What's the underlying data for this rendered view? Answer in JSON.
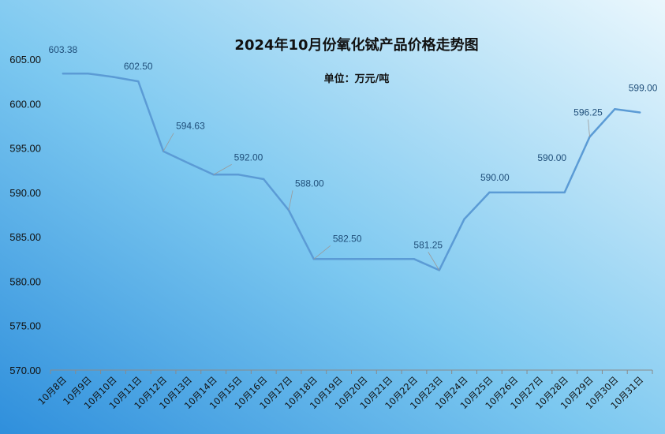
{
  "chart_data": {
    "type": "line",
    "title": "2024年10月份氧化铽产品价格走势图",
    "subtitle": "单位：万元/吨",
    "categories": [
      "10月8日",
      "10月9日",
      "10月10日",
      "10月11日",
      "10月12日",
      "10月13日",
      "10月14日",
      "10月15日",
      "10月16日",
      "10月17日",
      "10月18日",
      "10月19日",
      "10月20日",
      "10月21日",
      "10月22日",
      "10月23日",
      "10月24日",
      "10月25日",
      "10月26日",
      "10月27日",
      "10月28日",
      "10月29日",
      "10月30日",
      "10月31日"
    ],
    "series": [
      {
        "values": [
          603.38,
          603.38,
          603.0,
          602.5,
          594.63,
          593.3,
          592.0,
          592.0,
          591.5,
          588.0,
          582.5,
          582.5,
          582.5,
          582.5,
          582.5,
          581.25,
          587.0,
          590.0,
          590.0,
          590.0,
          590.0,
          596.25,
          599.38,
          599.0
        ]
      }
    ],
    "data_labels": [
      {
        "index": 0,
        "text": "603.38"
      },
      {
        "index": 3,
        "text": "602.50"
      },
      {
        "index": 4,
        "text": "594.63"
      },
      {
        "index": 6,
        "text": "592.00"
      },
      {
        "index": 9,
        "text": "588.00"
      },
      {
        "index": 10,
        "text": "582.50"
      },
      {
        "index": 15,
        "text": "581.25"
      },
      {
        "index": 17,
        "text": "590.00"
      },
      {
        "index": 20,
        "text": "590.00"
      },
      {
        "index": 21,
        "text": "596.25"
      },
      {
        "index": 23,
        "text": "599.00"
      }
    ],
    "y_ticks": [
      "570.00",
      "575.00",
      "580.00",
      "585.00",
      "590.00",
      "595.00",
      "600.00",
      "605.00"
    ],
    "ylim": [
      570,
      605
    ],
    "xlabel": "",
    "ylabel": "",
    "grid": false,
    "legend": "none",
    "colors": {
      "line": "#5b9bd5",
      "label": "#1f4e79",
      "bg_dark": "#3a9be3",
      "bg_light": "#e8f6fd"
    }
  }
}
